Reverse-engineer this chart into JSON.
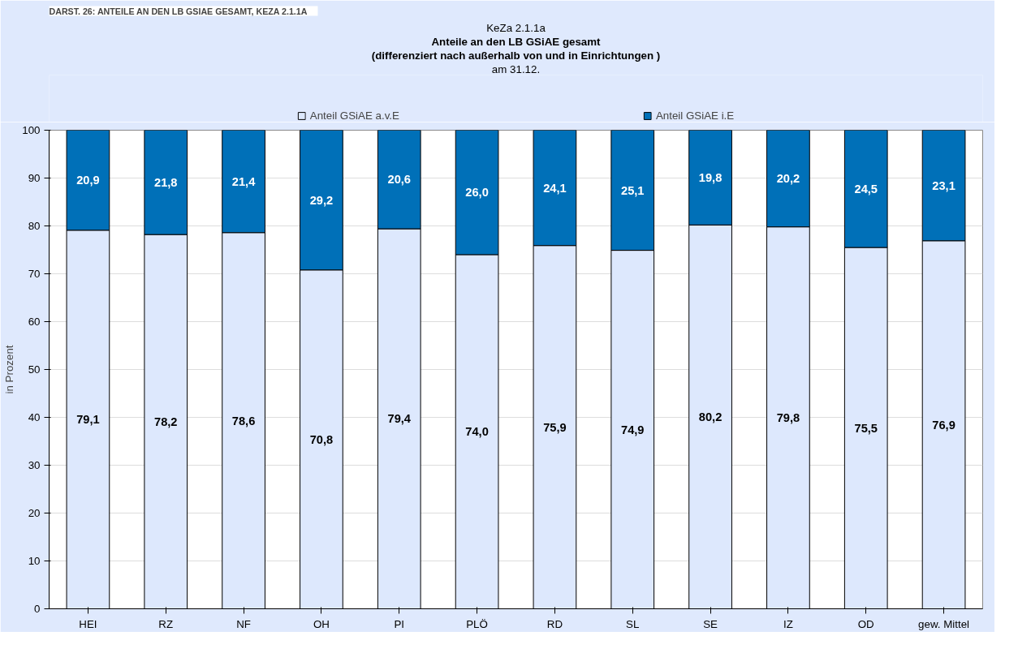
{
  "chart_data": {
    "type": "bar",
    "stacked": true,
    "title": "Anteile an den LB GSiAE gesamt",
    "subtitle": [
      "KeZa 2.1.1a",
      "(differenziert nach außerhalb von und in Einrichtungen )",
      "am 31.12."
    ],
    "annotations": [
      "DARST. 26:     ANTEILE AN DEN LB GSIAE GESAMT, KEZA 2.1.1A"
    ],
    "ylabel": "in Prozent",
    "categories": [
      "HEI",
      "RZ",
      "NF",
      "OH",
      "PI",
      "PLÖ",
      "RD",
      "SL",
      "SE",
      "IZ",
      "OD",
      "gew. Mittel"
    ],
    "series": [
      {
        "name": "Anteil GSiAE a.v.E",
        "color": "#dde8fd",
        "values": [
          79.1,
          78.2,
          78.6,
          70.8,
          79.4,
          74.0,
          75.9,
          74.9,
          80.2,
          79.8,
          75.5,
          76.9
        ],
        "value_labels": [
          "79,1",
          "78,2",
          "78,6",
          "70,8",
          "79,4",
          "74,0",
          "75,9",
          "74,9",
          "80,2",
          "79,8",
          "75,5",
          "76,9"
        ]
      },
      {
        "name": "Anteil GSiAE i.E",
        "color": "#0070b8",
        "values": [
          20.9,
          21.8,
          21.4,
          29.2,
          20.6,
          26.0,
          24.1,
          25.1,
          19.8,
          20.2,
          24.5,
          23.1
        ],
        "value_labels": [
          "20,9",
          "21,8",
          "21,4",
          "29,2",
          "20,6",
          "26,0",
          "24,1",
          "25,1",
          "19,8",
          "20,2",
          "24,5",
          "23,1"
        ]
      }
    ],
    "ylim": [
      0,
      100
    ],
    "yticks": [
      0,
      10,
      20,
      30,
      40,
      50,
      60,
      70,
      80,
      90,
      100
    ],
    "grid": "y",
    "legend": "top"
  }
}
